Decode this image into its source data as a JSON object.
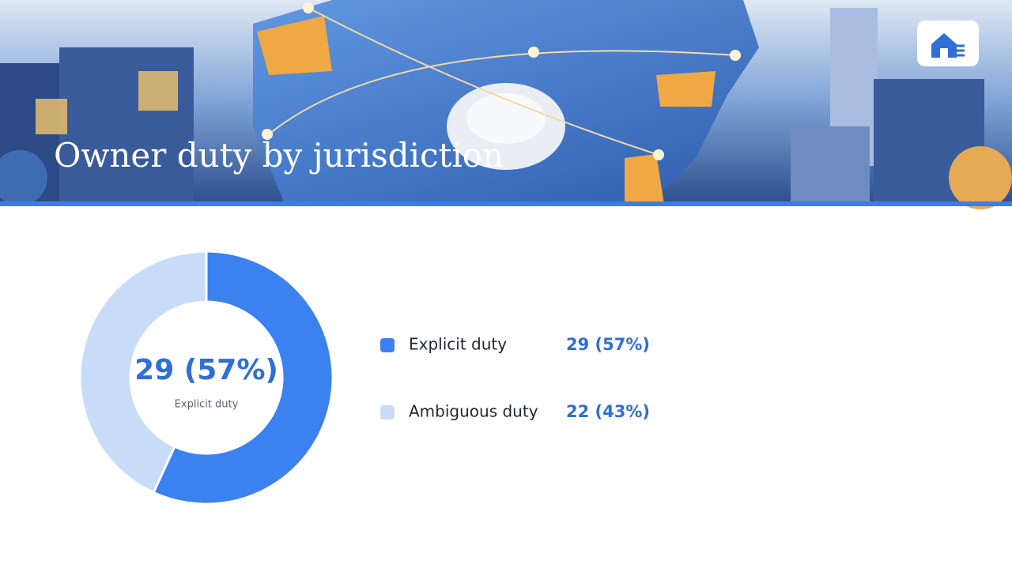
{
  "chart_data": {
    "type": "pie",
    "donut": true,
    "title": "Owner duty by jurisdiction",
    "categories": [
      "Explicit duty",
      "Ambiguous duty"
    ],
    "values": [
      29,
      22
    ],
    "value_labels": [
      "29 (57%)",
      "22 (43%)"
    ],
    "colors": [
      "#3b82f0",
      "#c9dcf7"
    ]
  }
}
